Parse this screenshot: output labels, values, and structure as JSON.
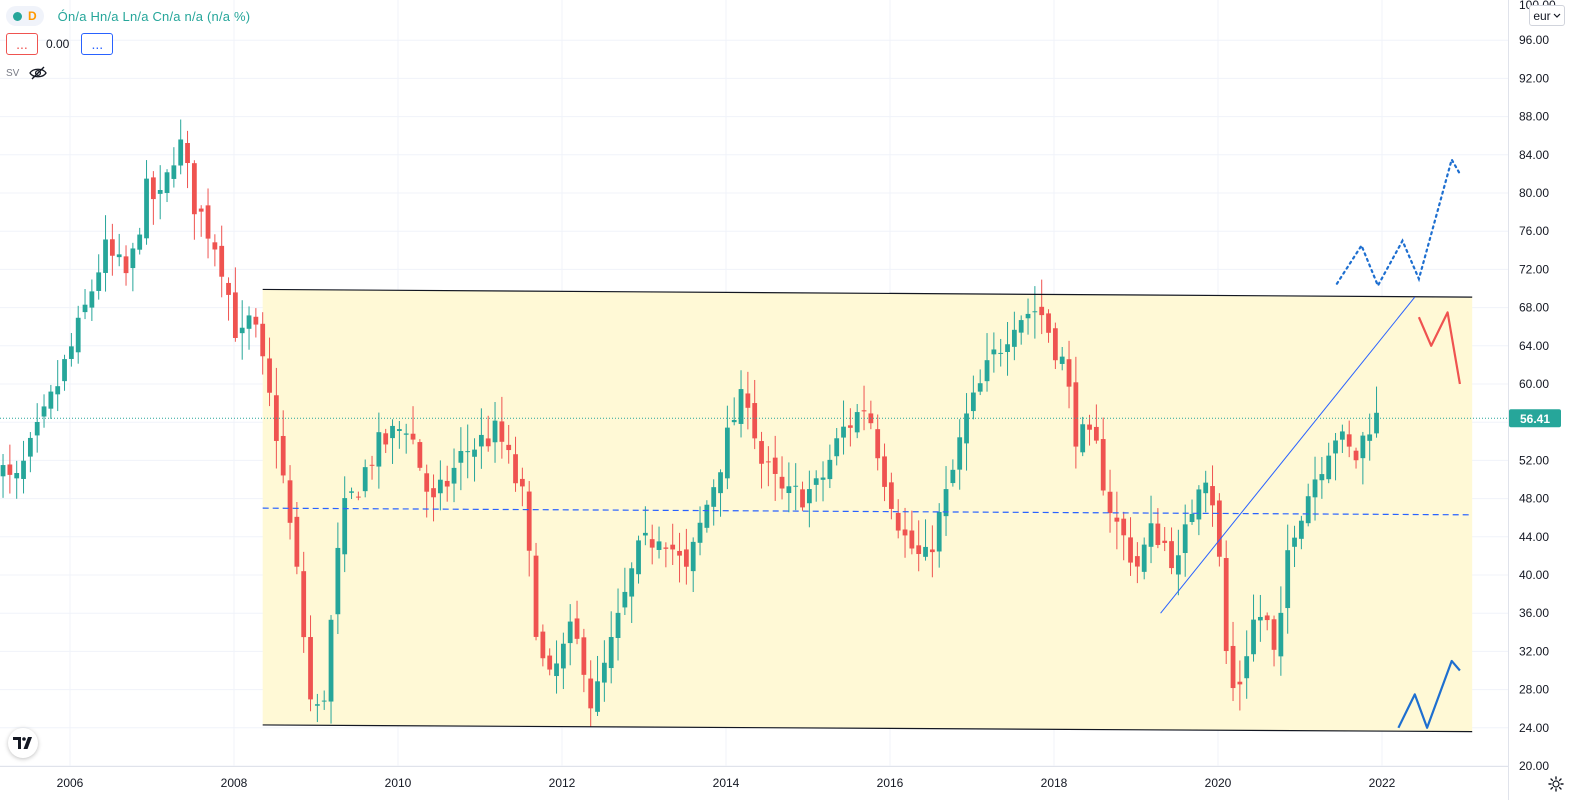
{
  "legend": {
    "interval": "D",
    "ohlc": "Ón/a Hn/a Ln/a Cn/a n/a (n/a %)"
  },
  "indicators": {
    "red_button": "...",
    "value": "0.00",
    "blue_button": "..."
  },
  "sv_label": "SV",
  "currency": "eur",
  "price_label": "56.41",
  "colors": {
    "up": "#26a69a",
    "down": "#ef5350",
    "channel_fill": "#fff9d6",
    "accent_blue": "#2962ff"
  },
  "chart_data": {
    "type": "candlestick",
    "interval": "monthly",
    "ylim": [
      20,
      100
    ],
    "y_ticks": [
      "96.00",
      "92.00",
      "88.00",
      "84.00",
      "80.00",
      "76.00",
      "72.00",
      "68.00",
      "64.00",
      "60.00",
      "56.00",
      "52.00",
      "48.00",
      "44.00",
      "40.00",
      "36.00",
      "32.00",
      "28.00",
      "24.00",
      "20.00"
    ],
    "y_top_partial": "100.00",
    "x_ticks": [
      {
        "label": "2006",
        "t": 2006.0
      },
      {
        "label": "2008",
        "t": 2008.0
      },
      {
        "label": "2010",
        "t": 2010.0
      },
      {
        "label": "2012",
        "t": 2012.0
      },
      {
        "label": "2014",
        "t": 2014.0
      },
      {
        "label": "2016",
        "t": 2016.0
      },
      {
        "label": "2018",
        "t": 2018.0
      },
      {
        "label": "2020",
        "t": 2020.0
      },
      {
        "label": "2022",
        "t": 2022.0
      }
    ],
    "x_range": [
      2005.1,
      2023.9
    ],
    "last_price": 56.41,
    "anchors": [
      [
        2005.1,
        53
      ],
      [
        2005.4,
        49
      ],
      [
        2005.8,
        57
      ],
      [
        2006.2,
        66
      ],
      [
        2006.5,
        74
      ],
      [
        2006.8,
        71
      ],
      [
        2007.0,
        80
      ],
      [
        2007.2,
        79
      ],
      [
        2007.4,
        86
      ],
      [
        2007.6,
        79
      ],
      [
        2007.9,
        74
      ],
      [
        2008.15,
        64
      ],
      [
        2008.3,
        67
      ],
      [
        2008.6,
        55
      ],
      [
        2008.9,
        37
      ],
      [
        2009.0,
        27
      ],
      [
        2009.15,
        25
      ],
      [
        2009.4,
        46
      ],
      [
        2009.8,
        53
      ],
      [
        2010.2,
        56
      ],
      [
        2010.5,
        47
      ],
      [
        2010.9,
        53
      ],
      [
        2011.3,
        55
      ],
      [
        2011.6,
        48
      ],
      [
        2011.75,
        36
      ],
      [
        2011.9,
        28
      ],
      [
        2012.2,
        34
      ],
      [
        2012.35,
        31
      ],
      [
        2012.45,
        26
      ],
      [
        2012.7,
        33
      ],
      [
        2013.0,
        42
      ],
      [
        2013.3,
        45
      ],
      [
        2013.6,
        40
      ],
      [
        2013.8,
        46
      ],
      [
        2014.2,
        57
      ],
      [
        2014.35,
        59
      ],
      [
        2014.5,
        52
      ],
      [
        2014.8,
        48
      ],
      [
        2015.2,
        49
      ],
      [
        2015.5,
        55
      ],
      [
        2015.8,
        58
      ],
      [
        2016.0,
        51
      ],
      [
        2016.25,
        44
      ],
      [
        2016.5,
        41
      ],
      [
        2016.8,
        49
      ],
      [
        2017.0,
        56
      ],
      [
        2017.3,
        62
      ],
      [
        2017.6,
        67
      ],
      [
        2017.9,
        68
      ],
      [
        2018.2,
        62
      ],
      [
        2018.35,
        55
      ],
      [
        2018.6,
        53
      ],
      [
        2018.8,
        46
      ],
      [
        2019.1,
        41
      ],
      [
        2019.3,
        45
      ],
      [
        2019.6,
        41
      ],
      [
        2019.9,
        52
      ],
      [
        2020.05,
        47
      ],
      [
        2020.2,
        30
      ],
      [
        2020.3,
        27
      ],
      [
        2020.5,
        35
      ],
      [
        2020.65,
        36
      ],
      [
        2020.8,
        30
      ],
      [
        2020.95,
        44
      ],
      [
        2021.2,
        49
      ],
      [
        2021.5,
        55
      ],
      [
        2021.75,
        52
      ],
      [
        2021.95,
        56.41
      ]
    ],
    "annotations": {
      "channel_top": [
        [
          2008.35,
          69.9
        ],
        [
          2023.1,
          69.1
        ]
      ],
      "channel_bottom": [
        [
          2008.35,
          24.3
        ],
        [
          2023.1,
          23.6
        ]
      ],
      "midline": [
        [
          2008.35,
          47.0
        ],
        [
          2023.1,
          46.3
        ]
      ],
      "trendline": [
        [
          2019.3,
          36.0
        ],
        [
          2022.4,
          69.1
        ]
      ],
      "projection_up_dotted": [
        [
          2021.45,
          70.5
        ],
        [
          2021.75,
          74.5
        ],
        [
          2021.95,
          70.3
        ],
        [
          2022.25,
          75.0
        ],
        [
          2022.45,
          71.0
        ],
        [
          2022.85,
          83.5
        ],
        [
          2022.95,
          82.0
        ]
      ],
      "projection_down": [
        [
          2022.45,
          67.0
        ],
        [
          2022.6,
          64.0
        ],
        [
          2022.8,
          67.5
        ],
        [
          2022.95,
          60.0
        ]
      ],
      "projection_up_bottom": [
        [
          2022.2,
          24.0
        ],
        [
          2022.4,
          27.5
        ],
        [
          2022.55,
          24.0
        ],
        [
          2022.85,
          31.0
        ],
        [
          2022.95,
          30.0
        ]
      ]
    }
  }
}
